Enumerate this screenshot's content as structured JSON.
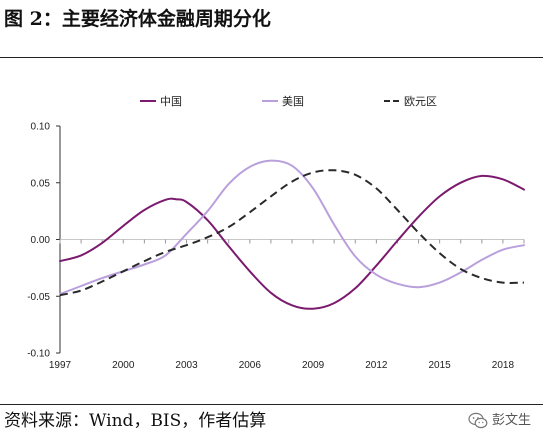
{
  "title": "图 2：主要经济体金融周期分化",
  "source": "资料来源：Wind，BIS，作者估算",
  "watermark": {
    "text": "彭文生",
    "icon": "wechat-icon"
  },
  "chart_data": {
    "type": "line",
    "title": "",
    "xlabel": "",
    "ylabel": "",
    "xlim": [
      1997,
      2019
    ],
    "ylim": [
      -0.1,
      0.1
    ],
    "x_ticks": [
      "1997",
      "2000",
      "2003",
      "2006",
      "2009",
      "2012",
      "2015",
      "2018"
    ],
    "y_ticks": [
      "0.10",
      "0.05",
      "0.00",
      "-0.05",
      "-0.10"
    ],
    "y_tick_values": [
      0.1,
      0.05,
      0.0,
      -0.05,
      -0.1
    ],
    "grid": false,
    "legend_position": "top",
    "series": [
      {
        "name": "中国",
        "color": "#7b1a6e",
        "style": "solid",
        "points": [
          [
            1997,
            -0.019
          ],
          [
            1998,
            -0.014
          ],
          [
            1999,
            -0.003
          ],
          [
            2000,
            0.012
          ],
          [
            2001,
            0.026
          ],
          [
            2002,
            0.035
          ],
          [
            2002.5,
            0.0355
          ],
          [
            2003,
            0.033
          ],
          [
            2004,
            0.017
          ],
          [
            2005,
            -0.006
          ],
          [
            2006,
            -0.028
          ],
          [
            2007,
            -0.047
          ],
          [
            2008,
            -0.058
          ],
          [
            2009,
            -0.061
          ],
          [
            2010,
            -0.056
          ],
          [
            2011,
            -0.043
          ],
          [
            2012,
            -0.023
          ],
          [
            2013,
            -0.001
          ],
          [
            2014,
            0.02
          ],
          [
            2015,
            0.038
          ],
          [
            2016,
            0.05
          ],
          [
            2017,
            0.056
          ],
          [
            2018,
            0.053
          ],
          [
            2019,
            0.044
          ]
        ]
      },
      {
        "name": "美国",
        "color": "#b9a0dc",
        "style": "solid",
        "points": [
          [
            1997,
            -0.048
          ],
          [
            1998,
            -0.041
          ],
          [
            1999,
            -0.034
          ],
          [
            2000,
            -0.028
          ],
          [
            2001,
            -0.022
          ],
          [
            2002,
            -0.014
          ],
          [
            2003,
            0.005
          ],
          [
            2004,
            0.025
          ],
          [
            2005,
            0.049
          ],
          [
            2006,
            0.064
          ],
          [
            2007,
            0.0695
          ],
          [
            2008,
            0.065
          ],
          [
            2009,
            0.045
          ],
          [
            2010,
            0.013
          ],
          [
            2011,
            -0.015
          ],
          [
            2012,
            -0.031
          ],
          [
            2013,
            -0.039
          ],
          [
            2014,
            -0.042
          ],
          [
            2015,
            -0.038
          ],
          [
            2016,
            -0.029
          ],
          [
            2017,
            -0.018
          ],
          [
            2018,
            -0.009
          ],
          [
            2019,
            -0.005
          ]
        ]
      },
      {
        "name": "欧元区",
        "color": "#2a2a2a",
        "style": "dashed",
        "points": [
          [
            1997,
            -0.049
          ],
          [
            1998,
            -0.045
          ],
          [
            1999,
            -0.037
          ],
          [
            2000,
            -0.028
          ],
          [
            2001,
            -0.019
          ],
          [
            2002,
            -0.011
          ],
          [
            2003,
            -0.005
          ],
          [
            2004,
            0.002
          ],
          [
            2005,
            0.011
          ],
          [
            2006,
            0.024
          ],
          [
            2007,
            0.038
          ],
          [
            2008,
            0.051
          ],
          [
            2009,
            0.059
          ],
          [
            2010,
            0.061
          ],
          [
            2011,
            0.057
          ],
          [
            2012,
            0.045
          ],
          [
            2013,
            0.026
          ],
          [
            2014,
            0.006
          ],
          [
            2015,
            -0.012
          ],
          [
            2016,
            -0.026
          ],
          [
            2017,
            -0.034
          ],
          [
            2018,
            -0.038
          ],
          [
            2019,
            -0.038
          ]
        ]
      }
    ]
  }
}
